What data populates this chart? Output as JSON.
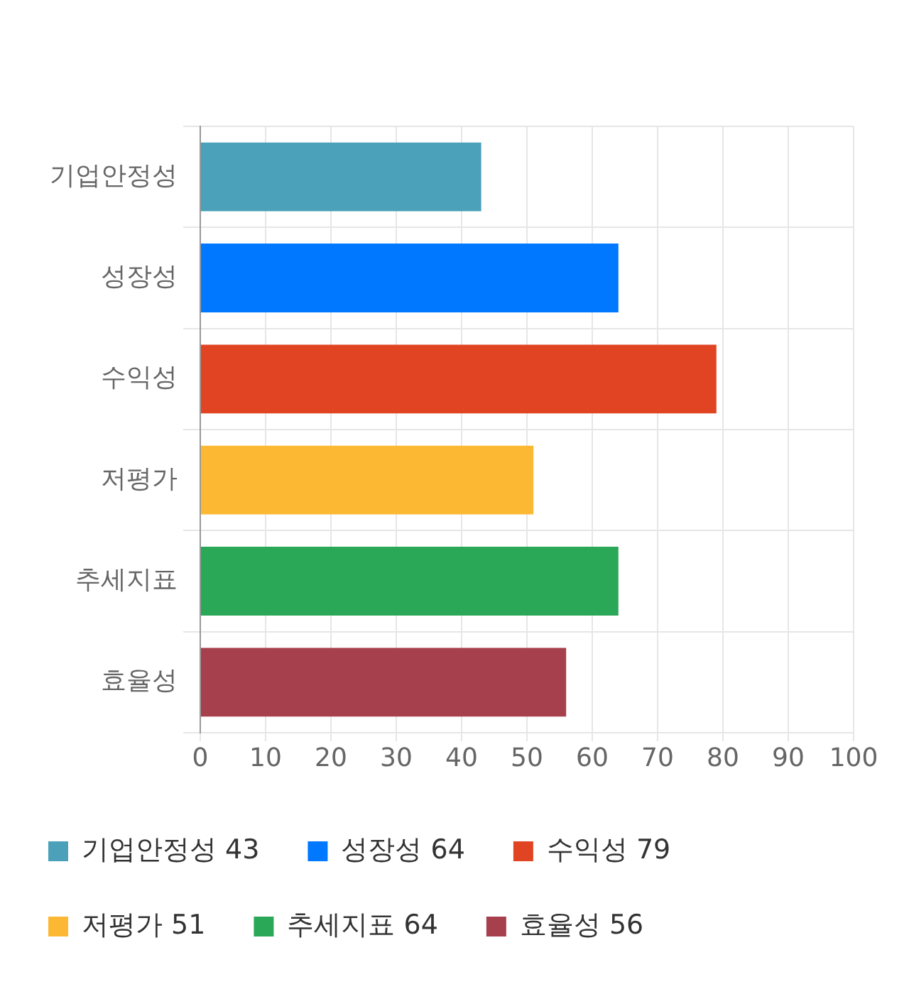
{
  "chart_data": {
    "type": "bar",
    "orientation": "horizontal",
    "categories": [
      "기업안정성",
      "성장성",
      "수익성",
      "저평가",
      "추세지표",
      "효율성"
    ],
    "series": [
      {
        "name": "기업안정성 43",
        "color": "#4aa1b9",
        "values": [
          43,
          null,
          null,
          null,
          null,
          null
        ]
      },
      {
        "name": "성장성 64",
        "color": "#0078ff",
        "values": [
          null,
          64,
          null,
          null,
          null,
          null
        ]
      },
      {
        "name": "수익성 79",
        "color": "#e14423",
        "values": [
          null,
          null,
          79,
          null,
          null,
          null
        ]
      },
      {
        "name": "저평가 51",
        "color": "#fdb833",
        "values": [
          null,
          null,
          null,
          51,
          null,
          null
        ]
      },
      {
        "name": "추세지표 64",
        "color": "#2aa757",
        "values": [
          null,
          null,
          null,
          null,
          64,
          null
        ]
      },
      {
        "name": "효율성 56",
        "color": "#a6404d",
        "values": [
          null,
          null,
          null,
          null,
          null,
          56
        ]
      }
    ],
    "xlim": [
      0,
      100
    ],
    "xticks": [
      0,
      10,
      20,
      30,
      40,
      50,
      60,
      70,
      80,
      90,
      100
    ],
    "grid": true,
    "legend": "bottom"
  }
}
